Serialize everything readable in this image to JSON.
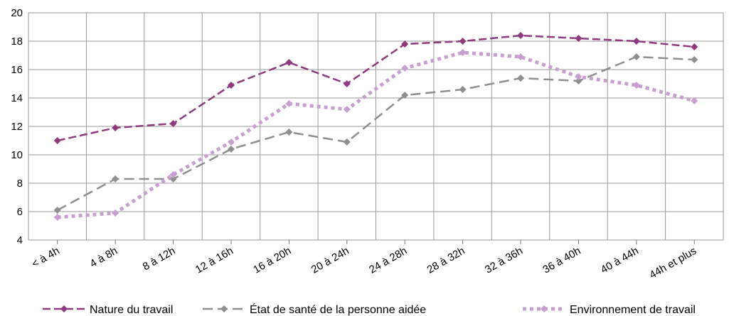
{
  "chart_data": {
    "type": "line",
    "title": "",
    "xlabel": "",
    "ylabel": "",
    "ylim": [
      4,
      20
    ],
    "yticks": [
      4,
      6,
      8,
      10,
      12,
      14,
      16,
      18,
      20
    ],
    "grid": true,
    "legend_position": "bottom",
    "categories": [
      "< à 4h",
      "4 à 8h",
      "8 à 12h",
      "12 à 16h",
      "16 à 20h",
      "20 à 24h",
      "24 à 28h",
      "28 à 32h",
      "32 à 36h",
      "36 à 40h",
      "40 à 44h",
      "44h et plus"
    ],
    "series": [
      {
        "name": "Nature du travail",
        "color": "#8e3a7c",
        "style": "dashed",
        "values": [
          11.0,
          11.9,
          12.2,
          14.9,
          16.5,
          15.0,
          17.8,
          18.0,
          18.4,
          18.2,
          18.0,
          17.6
        ]
      },
      {
        "name": "État de santé de la personne aidée",
        "color": "#8f8f8f",
        "style": "long-dashed",
        "values": [
          6.1,
          8.3,
          8.3,
          10.4,
          11.6,
          10.9,
          14.2,
          14.6,
          15.4,
          15.2,
          16.9,
          16.7
        ]
      },
      {
        "name": "Environnement de travail",
        "color": "#c79fd0",
        "style": "dotted",
        "values": [
          5.6,
          5.9,
          8.6,
          10.9,
          13.6,
          13.2,
          16.1,
          17.2,
          16.9,
          15.5,
          14.9,
          13.8
        ]
      }
    ]
  }
}
